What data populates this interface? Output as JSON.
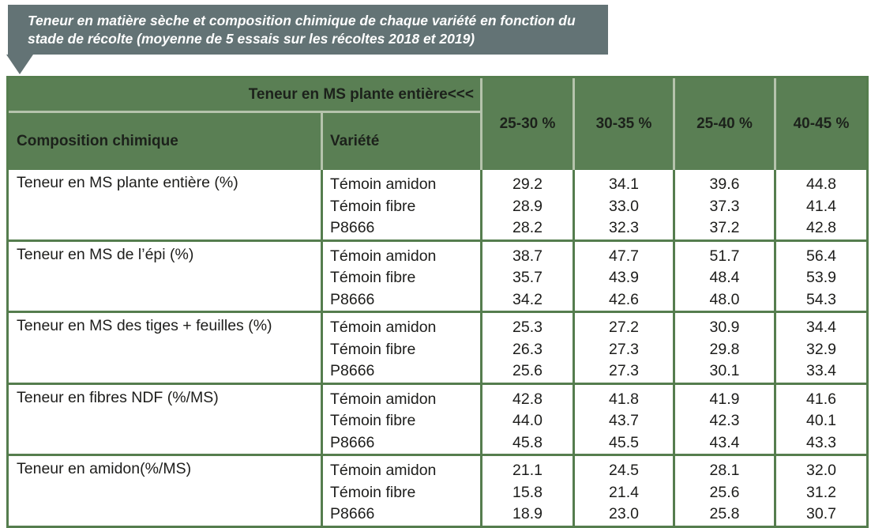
{
  "banner": {
    "text": "Teneur en matière sèche et composition chimique de chaque variété en fonction du stade de récolte (moyenne de 5 essais sur les récoltes 2018 et 2019)"
  },
  "table": {
    "top_header": "Teneur en MS plante entière<<<",
    "col_headers": {
      "composition": "Composition chimique",
      "variete": "Variété"
    },
    "stages": [
      "25-30 %",
      "30-35 %",
      "25-40 %",
      "40-45 %"
    ],
    "groups": [
      {
        "parameter": "Teneur en MS plante entière (%)",
        "rows": [
          {
            "variete": "Témoin amidon",
            "values": [
              "29.2",
              "34.1",
              "39.6",
              "44.8"
            ]
          },
          {
            "variete": "Témoin fibre",
            "values": [
              "28.9",
              "33.0",
              "37.3",
              "41.4"
            ]
          },
          {
            "variete": "P8666",
            "values": [
              "28.2",
              "32.3",
              "37.2",
              "42.8"
            ]
          }
        ]
      },
      {
        "parameter": "Teneur en MS de l’épi (%)",
        "rows": [
          {
            "variete": "Témoin amidon",
            "values": [
              "38.7",
              "47.7",
              "51.7",
              "56.4"
            ]
          },
          {
            "variete": "Témoin fibre",
            "values": [
              "35.7",
              "43.9",
              "48.4",
              "53.9"
            ]
          },
          {
            "variete": "P8666",
            "values": [
              "34.2",
              "42.6",
              "48.0",
              "54.3"
            ]
          }
        ]
      },
      {
        "parameter": "Teneur en MS des tiges + feuilles (%)",
        "rows": [
          {
            "variete": "Témoin amidon",
            "values": [
              "25.3",
              "27.2",
              "30.9",
              "34.4"
            ]
          },
          {
            "variete": "Témoin fibre",
            "values": [
              "26.3",
              "27.3",
              "29.8",
              "32.9"
            ]
          },
          {
            "variete": "P8666",
            "values": [
              "25.6",
              "27.3",
              "30.1",
              "33.4"
            ]
          }
        ]
      },
      {
        "parameter": "Teneur en fibres NDF (%/MS)",
        "rows": [
          {
            "variete": "Témoin amidon",
            "values": [
              "42.8",
              "41.8",
              "41.9",
              "41.6"
            ]
          },
          {
            "variete": "Témoin fibre",
            "values": [
              "44.0",
              "43.7",
              "42.3",
              "40.1"
            ]
          },
          {
            "variete": "P8666",
            "values": [
              "45.8",
              "45.5",
              "43.4",
              "43.3"
            ]
          }
        ]
      },
      {
        "parameter": "Teneur en amidon(%/MS)",
        "rows": [
          {
            "variete": "Témoin amidon",
            "values": [
              "21.1",
              "24.5",
              "28.1",
              "32.0"
            ]
          },
          {
            "variete": "Témoin fibre",
            "values": [
              "15.8",
              "21.4",
              "25.6",
              "31.2"
            ]
          },
          {
            "variete": "P8666",
            "values": [
              "18.9",
              "23.0",
              "25.8",
              "30.7"
            ]
          }
        ]
      }
    ]
  },
  "colors": {
    "banner_background": "#637375",
    "banner_text": "#ffffff",
    "header_green": "#5a7f54",
    "border_green": "#557d4e",
    "header_separator_light": "#b5c3ac",
    "table_text": "#1d1d1b",
    "cell_background": "#ffffff"
  }
}
